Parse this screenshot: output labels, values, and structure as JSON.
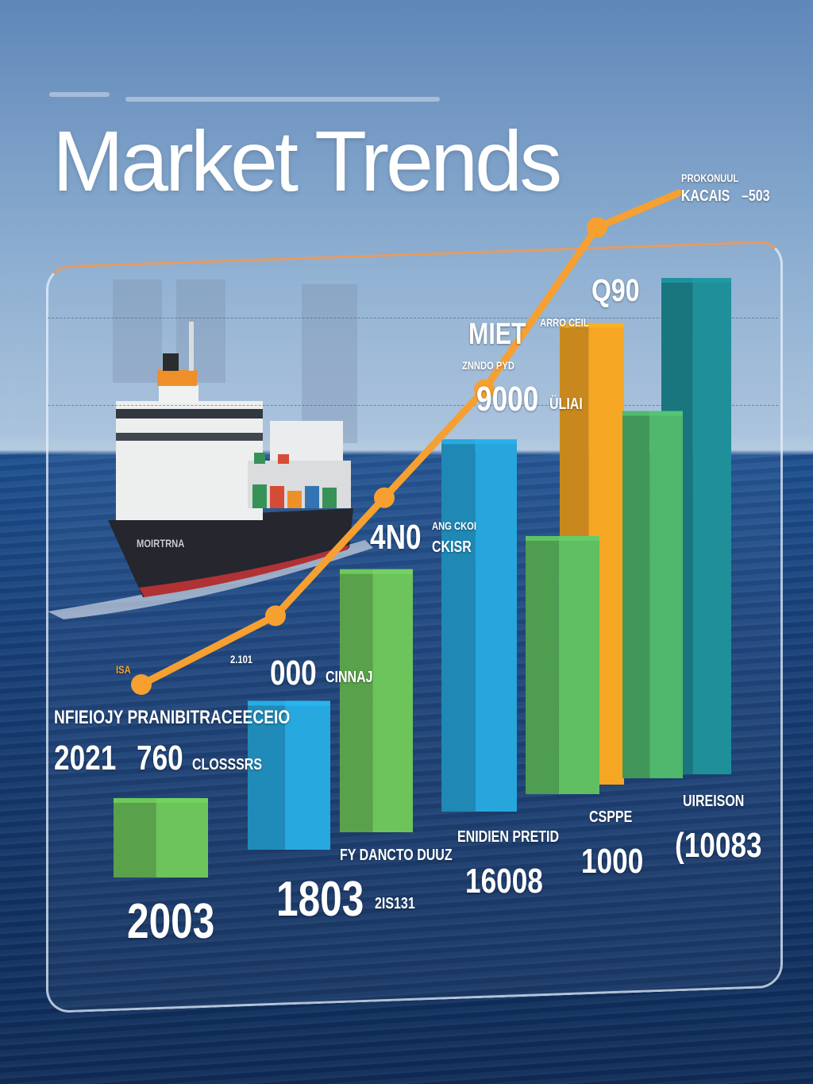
{
  "chart_data": {
    "type": "bar",
    "title": "Market Trends",
    "bar_colors": [
      "#6dc45a",
      "#27a9e0",
      "#6dc45a",
      "#26a6dc",
      "#5fbf62",
      "#f5a623",
      "#4fb86c",
      "#1f8f9a"
    ],
    "bar_levels": [
      0.16,
      0.3,
      0.53,
      0.75,
      0.52,
      0.93,
      0.74,
      1.0
    ],
    "line": {
      "color": "#f5a031",
      "levels": [
        0,
        0.14,
        0.38,
        0.6,
        0.93,
        1.0
      ]
    },
    "labels": {
      "top_right_a": "PROKONUUL",
      "top_right_b": "KACAIS",
      "top_right_c": "–503",
      "q90": "Q90",
      "miet": "MIET",
      "v9000": "9000",
      "v9000_sub": "ÜLIAI",
      "small_a": "ZNNDO  PYD",
      "small_b": "ARRO  CEIL",
      "t4n0": "4N0",
      "t4n0_sub": "CKISR",
      "small_c": "ANG CKOI",
      "v000": "000",
      "v000_sub": "CINNAJ",
      "v2101": "2.101",
      "isa": "ISA",
      "legend_line": "NFIEIOJY PRANIBITRACEECEIO",
      "y2021": "2021",
      "v760": "760",
      "v760_sub": "CLOSSSRS",
      "ship_name": "MOIRTRNA",
      "x2003": "2003",
      "x1803": "1803",
      "sub_1803": "FY DANCTO DUUZ",
      "sub_2s131": "2IS131",
      "x1600": "16008",
      "sub_1600": "ENIDIEN PRETID",
      "x1000": "1000",
      "sub_1000": "CSPPE",
      "x10083": "(10083",
      "sub_10083": "UIREISON"
    }
  }
}
